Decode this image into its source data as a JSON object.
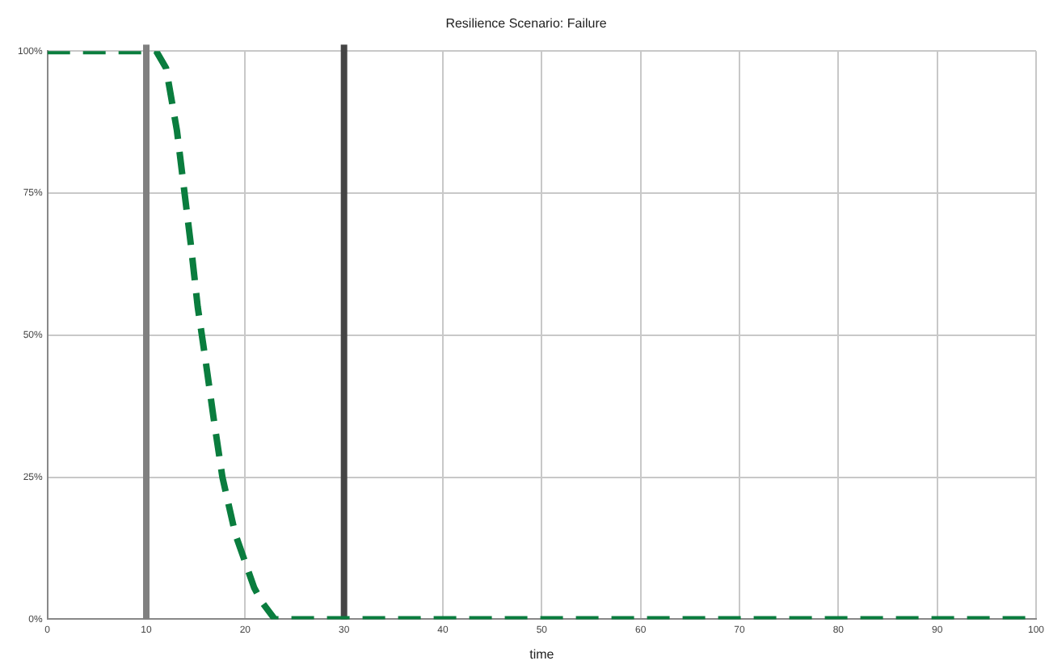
{
  "chart_data": {
    "type": "line",
    "title": "Resilience Scenario: Failure",
    "xlabel": "time",
    "x": [
      0,
      10,
      11,
      12,
      13.1,
      13.8,
      14.5,
      15.2,
      16,
      16.8,
      17.7,
      19,
      20.9,
      21.7,
      23,
      100
    ],
    "series": [
      {
        "color": "#0a7d3e",
        "values": [
          1,
          1,
          1,
          0.97,
          0.86,
          0.76,
          0.66,
          0.55,
          0.455,
          0.355,
          0.25,
          0.15,
          0.056,
          0.03,
          0,
          0
        ]
      }
    ],
    "xlim": [
      0,
      100
    ],
    "xticks": [
      0,
      10,
      20,
      30,
      40,
      50,
      60,
      70,
      80,
      90,
      100
    ],
    "ylim": [
      0,
      1
    ],
    "yticks": [
      {
        "value": 0,
        "label": "0%"
      },
      {
        "value": 0.25,
        "label": "25%"
      },
      {
        "value": 0.5,
        "label": "50%"
      },
      {
        "value": 0.75,
        "label": "75%"
      },
      {
        "value": 1,
        "label": "100%"
      }
    ],
    "ref_lines": [
      {
        "axis": "x",
        "value": 10,
        "color": "#808080"
      },
      {
        "axis": "x",
        "value": 30,
        "color": "#454545"
      }
    ],
    "grid": true,
    "line_style": "dashed",
    "marker": "none",
    "legend": false
  }
}
